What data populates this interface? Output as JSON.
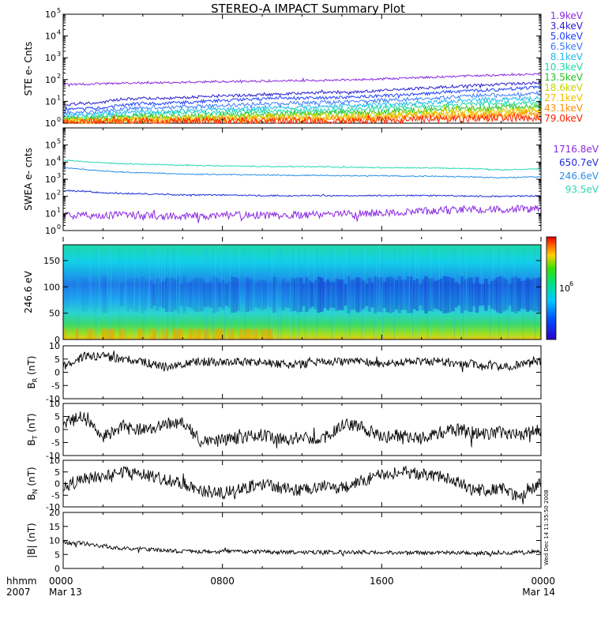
{
  "title": "STEREO-A IMPACT Summary Plot",
  "time_axis": {
    "row1_label": "hhmm",
    "row2_label": "2007",
    "ticks": [
      {
        "hour": 0,
        "time": "0000",
        "date": "Mar 13"
      },
      {
        "hour": 8,
        "time": "0800",
        "date": ""
      },
      {
        "hour": 16,
        "time": "1600",
        "date": ""
      },
      {
        "hour": 24,
        "time": "0000",
        "date": "Mar 14"
      }
    ],
    "side_stamp": "Wed Dec 14 11:35:50 2008"
  },
  "chart_data": [
    {
      "id": "ste",
      "type": "line",
      "ylabel": "STE e- Cnts",
      "yscale": "log",
      "ylim": [
        1,
        100000
      ],
      "yticks": [
        {
          "v": 1,
          "base": "10",
          "exp": "0"
        },
        {
          "v": 10,
          "base": "10",
          "exp": "1"
        },
        {
          "v": 100,
          "base": "10",
          "exp": "2"
        },
        {
          "v": 1000,
          "base": "10",
          "exp": "3"
        },
        {
          "v": 10000,
          "base": "10",
          "exp": "4"
        },
        {
          "v": 100000,
          "base": "10",
          "exp": "5"
        }
      ],
      "x_unit": "hours since 2007-03-13 0000",
      "xlim": [
        0,
        24
      ],
      "series": [
        {
          "name": "1.9keV",
          "color": "#8a2be2",
          "values": [
            60,
            62,
            65,
            68,
            70,
            72,
            75,
            78,
            80,
            82,
            85,
            88,
            90,
            92,
            95,
            100,
            105,
            115,
            125,
            135,
            145,
            150,
            160,
            170,
            175
          ]
        },
        {
          "name": "3.4keV",
          "color": "#2a1ecf",
          "values": [
            7,
            8,
            9,
            13,
            14,
            14,
            15,
            17,
            18,
            19,
            20,
            22,
            24,
            25,
            25,
            28,
            32,
            36,
            40,
            45,
            50,
            55,
            60,
            65,
            70
          ]
        },
        {
          "name": "5.0keV",
          "color": "#1e40ff",
          "values": [
            4,
            4.5,
            5,
            7,
            8,
            8,
            9,
            10,
            11,
            12,
            13,
            14,
            14,
            15,
            15,
            16,
            18,
            20,
            22,
            26,
            30,
            32,
            35,
            40,
            45
          ]
        },
        {
          "name": "6.5keV",
          "color": "#3a7bff",
          "values": [
            3,
            3.2,
            3.5,
            4.5,
            5,
            5,
            5.5,
            6,
            6.5,
            7,
            7.5,
            8,
            8.5,
            9,
            9,
            10,
            11,
            12,
            13,
            15,
            17,
            19,
            20,
            22,
            24
          ]
        },
        {
          "name": "8.1keV",
          "color": "#22bbee",
          "values": [
            2.2,
            2.4,
            2.6,
            3.2,
            3.5,
            3.5,
            3.8,
            4,
            4.3,
            4.6,
            5,
            5.2,
            5.5,
            5.8,
            6,
            6.5,
            7,
            7.5,
            8.5,
            9.5,
            10.5,
            11.5,
            12,
            13,
            14
          ]
        },
        {
          "name": "10.3keV",
          "color": "#22d8a8",
          "values": [
            1.8,
            1.9,
            2,
            2.4,
            2.6,
            2.6,
            2.8,
            3,
            3.1,
            3.3,
            3.5,
            3.7,
            3.9,
            4,
            4.2,
            4.5,
            4.8,
            5.2,
            5.8,
            6.3,
            7,
            7.5,
            8,
            8.5,
            9
          ]
        },
        {
          "name": "13.5keV",
          "color": "#22c422",
          "values": [
            1.5,
            1.6,
            1.7,
            1.9,
            2,
            2,
            2.1,
            2.2,
            2.3,
            2.4,
            2.5,
            2.6,
            2.7,
            2.8,
            2.9,
            3.1,
            3.3,
            3.6,
            4,
            4.4,
            4.8,
            5,
            5.3,
            5.6,
            6
          ]
        },
        {
          "name": "18.6keV",
          "color": "#c8d400",
          "values": [
            1.3,
            1.35,
            1.4,
            1.6,
            1.7,
            1.7,
            1.75,
            1.8,
            1.85,
            1.9,
            2,
            2.05,
            2.1,
            2.2,
            2.25,
            2.4,
            2.5,
            2.7,
            3,
            3.2,
            3.5,
            3.7,
            3.9,
            4.1,
            4.3
          ]
        },
        {
          "name": "27.1keV",
          "color": "#f0c000",
          "values": [
            1.2,
            1.25,
            1.3,
            1.4,
            1.45,
            1.45,
            1.5,
            1.55,
            1.6,
            1.6,
            1.65,
            1.7,
            1.75,
            1.8,
            1.85,
            1.95,
            2,
            2.2,
            2.4,
            2.5,
            2.7,
            2.8,
            3,
            3.1,
            3.2
          ]
        },
        {
          "name": "43.1keV",
          "color": "#ff8c00",
          "values": [
            1.1,
            1.15,
            1.2,
            1.25,
            1.3,
            1.3,
            1.3,
            1.35,
            1.35,
            1.4,
            1.4,
            1.45,
            1.45,
            1.5,
            1.5,
            1.55,
            1.6,
            1.7,
            1.8,
            1.9,
            2,
            2.1,
            2.2,
            2.3,
            2.4
          ]
        },
        {
          "name": "79.0keV",
          "color": "#ff2000",
          "values": [
            1.05,
            1.1,
            1.1,
            1.15,
            1.15,
            1.15,
            1.2,
            1.2,
            1.2,
            1.25,
            1.25,
            1.25,
            1.3,
            1.3,
            1.3,
            1.35,
            1.4,
            1.45,
            1.5,
            1.55,
            1.6,
            1.65,
            1.7,
            1.75,
            1.8
          ]
        }
      ]
    },
    {
      "id": "swea",
      "type": "line",
      "ylabel": "SWEA e- cnts",
      "yscale": "log",
      "ylim": [
        1,
        1000000
      ],
      "yticks": [
        {
          "v": 1,
          "base": "10",
          "exp": "0"
        },
        {
          "v": 10,
          "base": "10",
          "exp": "1"
        },
        {
          "v": 100,
          "base": "10",
          "exp": "2"
        },
        {
          "v": 1000,
          "base": "10",
          "exp": "3"
        },
        {
          "v": 10000,
          "base": "10",
          "exp": "4"
        },
        {
          "v": 100000,
          "base": "10",
          "exp": "5"
        }
      ],
      "x_unit": "hours since 2007-03-13 0000",
      "xlim": [
        0,
        24
      ],
      "series": [
        {
          "name": "1716.8eV",
          "color": "#8a2be2",
          "values": [
            7,
            7,
            8,
            8,
            8,
            7,
            7,
            7,
            8,
            8,
            8,
            8,
            8,
            9,
            9,
            10,
            11,
            12,
            14,
            15,
            16,
            17,
            18,
            18,
            18
          ]
        },
        {
          "name": "650.7eV",
          "color": "#1f2fd8",
          "values": [
            220,
            200,
            160,
            150,
            140,
            130,
            120,
            120,
            120,
            115,
            110,
            110,
            110,
            110,
            105,
            110,
            110,
            110,
            110,
            110,
            105,
            100,
            100,
            105,
            105
          ]
        },
        {
          "name": "246.6eV",
          "color": "#2a8fe8",
          "values": [
            4500,
            3800,
            3000,
            2600,
            2400,
            2200,
            2000,
            1900,
            1900,
            1800,
            1800,
            1700,
            1700,
            1700,
            1600,
            1600,
            1600,
            1500,
            1500,
            1500,
            1400,
            1300,
            1200,
            1300,
            1400
          ]
        },
        {
          "name": "93.5eV",
          "color": "#2ad8b0",
          "values": [
            13000,
            11000,
            9000,
            8000,
            7500,
            7000,
            6500,
            6200,
            6000,
            5800,
            5600,
            5500,
            5400,
            5300,
            5000,
            4900,
            4800,
            4700,
            4600,
            4500,
            4300,
            4000,
            3500,
            3800,
            4200
          ]
        }
      ]
    },
    {
      "id": "pad",
      "type": "heatmap",
      "ylabel": "246.6 eV",
      "ylim": [
        0,
        180
      ],
      "yticks": [
        0,
        50,
        100,
        150
      ],
      "x_unit": "hours since 2007-03-13 0000",
      "xlim": [
        0,
        24
      ],
      "colorbar": {
        "label_base": "10",
        "label_exp": "6",
        "label_value": 1000000
      },
      "description_profile": "pitch-angle distribution; high counts near 0 deg, minimum near 90 deg deepening after 1200"
    },
    {
      "id": "br",
      "type": "line",
      "ylabel": "B_R (nT)",
      "ylabel_main": "B",
      "ylabel_sub": "R",
      "ylabel_unit": " (nT)",
      "ylim": [
        -10,
        10
      ],
      "yticks": [
        -10,
        -5,
        0,
        5,
        10
      ],
      "x_unit": "hours since 2007-03-13 0000",
      "xlim": [
        0,
        24
      ],
      "values": [
        2,
        6,
        6,
        5,
        4,
        2,
        3,
        4,
        4,
        4,
        4,
        3,
        3,
        4,
        4,
        4,
        3,
        4,
        4,
        4,
        3,
        3,
        2,
        3,
        4
      ]
    },
    {
      "id": "bt",
      "type": "line",
      "ylabel": "B_T (nT)",
      "ylabel_main": "B",
      "ylabel_sub": "T",
      "ylabel_unit": " (nT)",
      "ylim": [
        -10,
        10
      ],
      "yticks": [
        -10,
        -5,
        0,
        5,
        10
      ],
      "x_unit": "hours since 2007-03-13 0000",
      "xlim": [
        0,
        24
      ],
      "values": [
        2,
        5,
        -3,
        1,
        0,
        2,
        3,
        -5,
        -4,
        -3,
        -2,
        -4,
        -3,
        -4,
        2,
        1,
        -3,
        -2,
        -4,
        -1,
        0,
        -2,
        -1,
        -2,
        0
      ]
    },
    {
      "id": "bn",
      "type": "line",
      "ylabel": "B_N (nT)",
      "ylabel_main": "B",
      "ylabel_sub": "N",
      "ylabel_unit": " (nT)",
      "ylim": [
        -10,
        10
      ],
      "yticks": [
        -10,
        -5,
        0,
        5,
        10
      ],
      "x_unit": "hours since 2007-03-13 0000",
      "xlim": [
        0,
        24
      ],
      "values": [
        -2,
        2,
        3,
        5,
        4,
        2,
        0,
        -3,
        -4,
        -2,
        0,
        -2,
        -3,
        -1,
        -2,
        1,
        4,
        5,
        4,
        3,
        0,
        -3,
        -2,
        -6,
        1
      ]
    },
    {
      "id": "bmag",
      "type": "line",
      "ylabel": "|B| (nT)",
      "ylim": [
        0,
        20
      ],
      "yticks": [
        0,
        5,
        10,
        15,
        20
      ],
      "x_unit": "hours since 2007-03-13 0000",
      "xlim": [
        0,
        24
      ],
      "values": [
        9,
        9,
        8,
        7,
        7,
        6.5,
        6,
        6,
        6,
        6,
        6,
        5.8,
        5.8,
        5.8,
        5.8,
        5.8,
        5.7,
        5.7,
        5.6,
        5.6,
        5.6,
        5.5,
        5.5,
        5.8,
        6
      ]
    }
  ]
}
